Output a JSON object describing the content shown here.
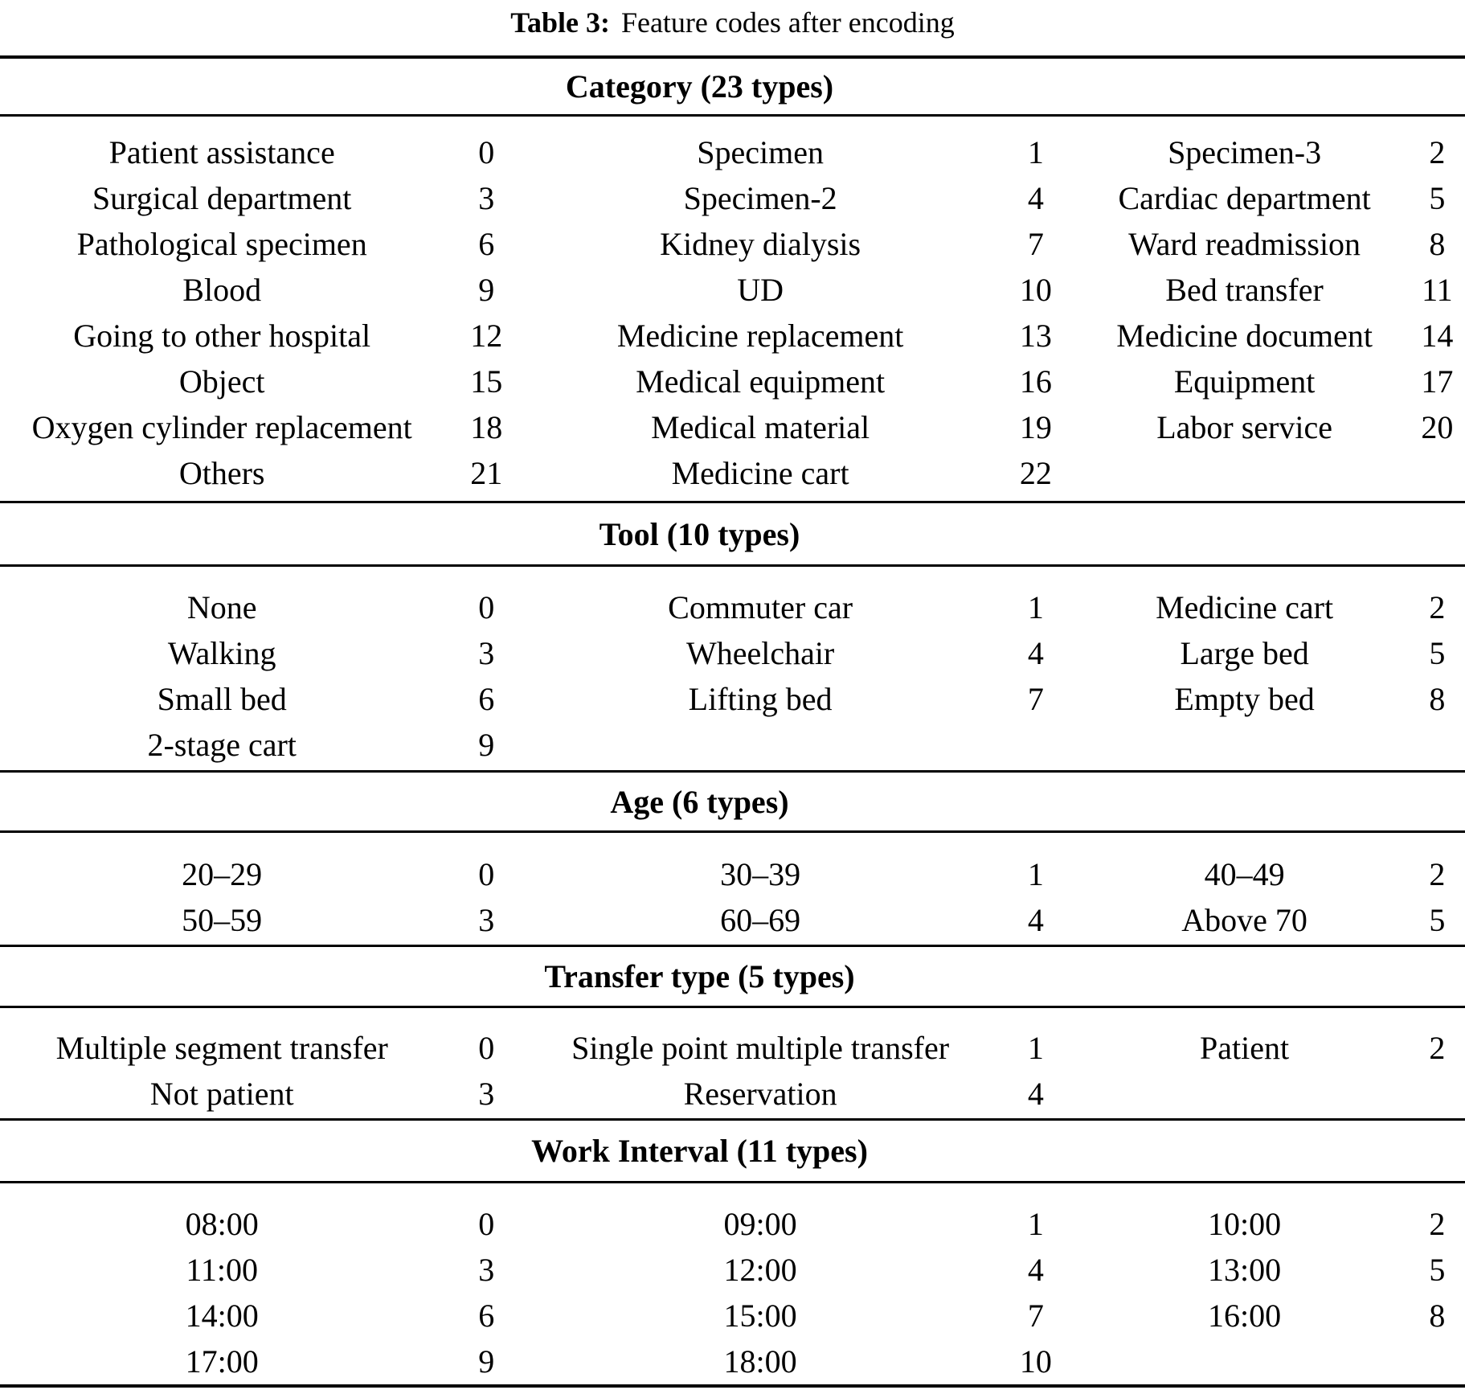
{
  "title": {
    "label": "Table 3:",
    "caption": "Feature codes after encoding"
  },
  "table": {
    "sections": [
      {
        "header": "Category (23 types)",
        "name": "category",
        "rows": [
          [
            {
              "label": "Patient assistance",
              "code": "0"
            },
            {
              "label": "Specimen",
              "code": "1"
            },
            {
              "label": "Specimen-3",
              "code": "2"
            }
          ],
          [
            {
              "label": "Surgical department",
              "code": "3"
            },
            {
              "label": "Specimen-2",
              "code": "4"
            },
            {
              "label": "Cardiac department",
              "code": "5"
            }
          ],
          [
            {
              "label": "Pathological specimen",
              "code": "6"
            },
            {
              "label": "Kidney dialysis",
              "code": "7"
            },
            {
              "label": "Ward readmission",
              "code": "8"
            }
          ],
          [
            {
              "label": "Blood",
              "code": "9"
            },
            {
              "label": "UD",
              "code": "10"
            },
            {
              "label": "Bed transfer",
              "code": "11"
            }
          ],
          [
            {
              "label": "Going to other hospital",
              "code": "12"
            },
            {
              "label": "Medicine replacement",
              "code": "13"
            },
            {
              "label": "Medicine document",
              "code": "14"
            }
          ],
          [
            {
              "label": "Object",
              "code": "15"
            },
            {
              "label": "Medical equipment",
              "code": "16"
            },
            {
              "label": "Equipment",
              "code": "17"
            }
          ],
          [
            {
              "label": "Oxygen cylinder replacement",
              "code": "18"
            },
            {
              "label": "Medical material",
              "code": "19"
            },
            {
              "label": "Labor service",
              "code": "20"
            }
          ],
          [
            {
              "label": "Others",
              "code": "21"
            },
            {
              "label": "Medicine cart",
              "code": "22"
            },
            {
              "label": "",
              "code": ""
            }
          ]
        ]
      },
      {
        "header": "Tool (10 types)",
        "name": "tool",
        "rows": [
          [
            {
              "label": "None",
              "code": "0"
            },
            {
              "label": "Commuter car",
              "code": "1"
            },
            {
              "label": "Medicine cart",
              "code": "2"
            }
          ],
          [
            {
              "label": "Walking",
              "code": "3"
            },
            {
              "label": "Wheelchair",
              "code": "4"
            },
            {
              "label": "Large bed",
              "code": "5"
            }
          ],
          [
            {
              "label": "Small bed",
              "code": "6"
            },
            {
              "label": "Lifting bed",
              "code": "7"
            },
            {
              "label": "Empty bed",
              "code": "8"
            }
          ],
          [
            {
              "label": "2-stage cart",
              "code": "9"
            },
            {
              "label": "",
              "code": ""
            },
            {
              "label": "",
              "code": ""
            }
          ]
        ]
      },
      {
        "header": "Age (6 types)",
        "name": "age",
        "rows": [
          [
            {
              "label": "20–29",
              "code": "0"
            },
            {
              "label": "30–39",
              "code": "1"
            },
            {
              "label": "40–49",
              "code": "2"
            }
          ],
          [
            {
              "label": "50–59",
              "code": "3"
            },
            {
              "label": "60–69",
              "code": "4"
            },
            {
              "label": "Above 70",
              "code": "5"
            }
          ]
        ]
      },
      {
        "header": "Transfer type (5 types)",
        "name": "transfer-type",
        "rows": [
          [
            {
              "label": "Multiple segment transfer",
              "code": "0"
            },
            {
              "label": "Single point multiple transfer",
              "code": "1"
            },
            {
              "label": "Patient",
              "code": "2"
            }
          ],
          [
            {
              "label": "Not patient",
              "code": "3"
            },
            {
              "label": "Reservation",
              "code": "4"
            },
            {
              "label": "",
              "code": ""
            }
          ]
        ]
      },
      {
        "header": "Work Interval (11 types)",
        "name": "work-interval",
        "rows": [
          [
            {
              "label": "08:00",
              "code": "0"
            },
            {
              "label": "09:00",
              "code": "1"
            },
            {
              "label": "10:00",
              "code": "2"
            }
          ],
          [
            {
              "label": "11:00",
              "code": "3"
            },
            {
              "label": "12:00",
              "code": "4"
            },
            {
              "label": "13:00",
              "code": "5"
            }
          ],
          [
            {
              "label": "14:00",
              "code": "6"
            },
            {
              "label": "15:00",
              "code": "7"
            },
            {
              "label": "16:00",
              "code": "8"
            }
          ],
          [
            {
              "label": "17:00",
              "code": "9"
            },
            {
              "label": "18:00",
              "code": "10"
            },
            {
              "label": "",
              "code": ""
            }
          ]
        ]
      }
    ]
  }
}
